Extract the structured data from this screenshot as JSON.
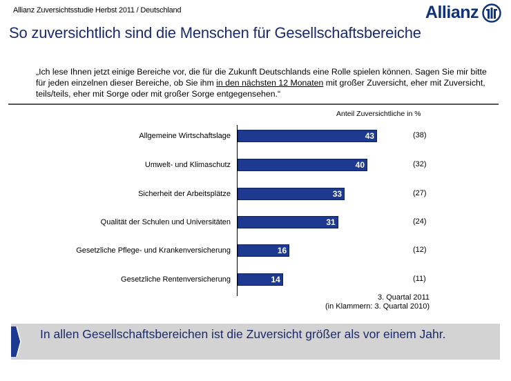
{
  "header": {
    "study": "Allianz Zuversichtsstudie Herbst 2011 / Deutschland",
    "logo": "Allianz",
    "title": "So zuversichtlich sind die Menschen für Gesellschaftsbereiche"
  },
  "quote": {
    "before": "„Ich lese Ihnen jetzt einige Bereiche vor, die für die Zukunft Deutschlands eine Rolle spielen können. Sagen Sie mir bitte für jeden einzelnen dieser Bereiche, ob Sie ihm ",
    "underlined": "in den nächsten 12 Monaten",
    "after": " mit großer Zuversicht, eher mit Zuversicht, teils/teils, eher mit Sorge oder mit großer Sorge entgegensehen.“"
  },
  "chart_data": {
    "type": "bar",
    "orientation": "horizontal",
    "unit_label": "Anteil Zuversichtliche in %",
    "categories": [
      "Allgemeine Wirtschaftslage",
      "Umwelt- und Klimaschutz",
      "Sicherheit der Arbeitsplätze",
      "Qualität der Schulen und Universitäten",
      "Gesetzliche Pflege- und Krankenversicherung",
      "Gesetzliche Rentenversicherung"
    ],
    "series": [
      {
        "name": "3. Quartal 2011",
        "values": [
          43,
          40,
          33,
          31,
          16,
          14
        ]
      },
      {
        "name": "3. Quartal 2010",
        "values": [
          38,
          32,
          27,
          24,
          12,
          11
        ],
        "display": "in brackets"
      }
    ],
    "previous_labels": [
      "(38)",
      "(32)",
      "(27)",
      "(24)",
      "(12)",
      "(11)"
    ],
    "xlim": [
      0,
      60
    ],
    "bar_color": "#1d3990",
    "note_line1": "3. Quartal 2011",
    "note_line2": "(in Klammern: 3. Quartal 2010)"
  },
  "banner": {
    "text": "In allen Gesellschaftsbereichen ist die Zuversicht größer als vor einem Jahr."
  },
  "colors": {
    "brand": "#0f3278",
    "title": "#1a2a6c",
    "banner_bg": "#d3d3d3"
  }
}
